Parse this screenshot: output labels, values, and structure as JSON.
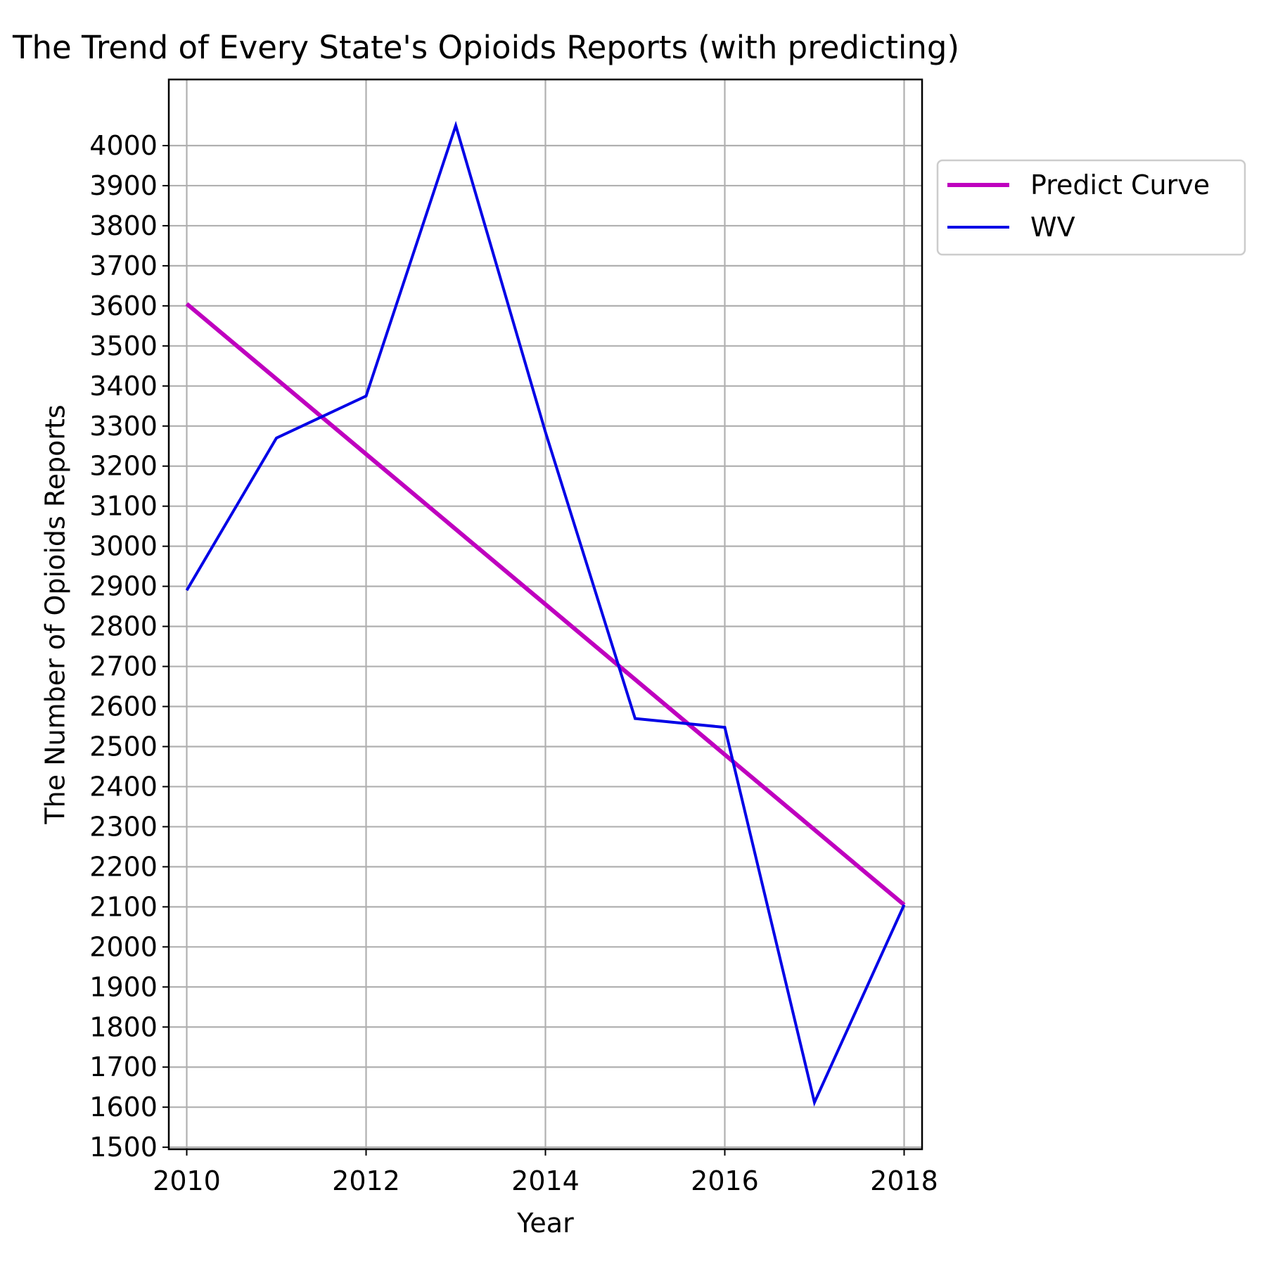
{
  "chart_data": {
    "type": "line",
    "title": "The Trend of Every State's Opioids Reports (with predicting)",
    "xlabel": "Year",
    "ylabel": "The Number of Opioids Reports",
    "xlim": [
      2009.8,
      2018.2
    ],
    "ylim": [
      1495,
      4165
    ],
    "xticks": [
      2010,
      2012,
      2014,
      2016,
      2018
    ],
    "yticks": [
      1500,
      1600,
      1700,
      1800,
      1900,
      2000,
      2100,
      2200,
      2300,
      2400,
      2500,
      2600,
      2700,
      2800,
      2900,
      3000,
      3100,
      3200,
      3300,
      3400,
      3500,
      3600,
      3700,
      3800,
      3900,
      4000
    ],
    "grid": true,
    "legend_position": "outside-upper-right",
    "series": [
      {
        "name": "Predict Curve",
        "color": "#bf00bf",
        "x": [
          2010,
          2018
        ],
        "y": [
          3605,
          2105
        ]
      },
      {
        "name": "WV",
        "color": "#0000e6",
        "x": [
          2010,
          2011,
          2012,
          2013,
          2014,
          2015,
          2016,
          2017,
          2018
        ],
        "y": [
          2890,
          3270,
          3375,
          4050,
          3285,
          2570,
          2548,
          1612,
          2105
        ]
      }
    ]
  }
}
